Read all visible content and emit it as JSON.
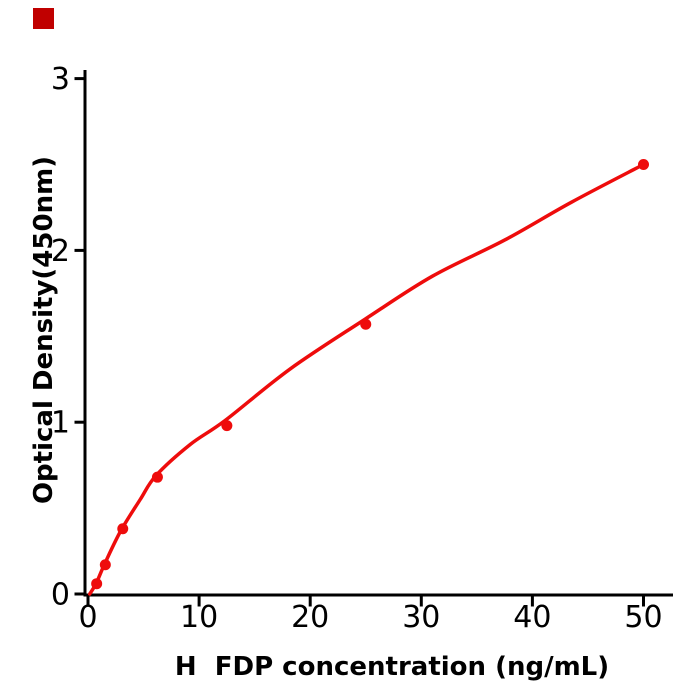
{
  "figure": {
    "background": "#ffffff",
    "brand_mark_color": "#c00000"
  },
  "chart_data": {
    "type": "scatter",
    "title": "",
    "xlabel": "H  FDP concentration (ng/mL)",
    "ylabel": "Optical Density(450nm)",
    "x_ticks": [
      "0",
      "10",
      "20",
      "30",
      "40",
      "50"
    ],
    "x_tick_values": [
      0,
      10,
      20,
      30,
      40,
      50
    ],
    "y_ticks": [
      "0",
      "1",
      "2",
      "3"
    ],
    "y_tick_values": [
      0,
      1,
      2,
      3
    ],
    "xlim": [
      -0.35,
      52.7
    ],
    "ylim": [
      -0.05,
      3.05
    ],
    "grid": false,
    "legend": "none",
    "axis_color": "#000000",
    "series": [
      {
        "name": "standard-points",
        "type": "scatter",
        "color": "#ee0c0c",
        "x": [
          0.78,
          1.56,
          3.13,
          6.25,
          12.5,
          25,
          50
        ],
        "y": [
          0.06,
          0.17,
          0.38,
          0.68,
          0.98,
          1.57,
          2.5
        ]
      }
    ],
    "fit_curve": {
      "name": "fitted-curve",
      "color": "#ee0c0c",
      "samples": [
        [
          0.15,
          0.0
        ],
        [
          0.72,
          0.06
        ],
        [
          1.53,
          0.18
        ],
        [
          2.97,
          0.37
        ],
        [
          4.7,
          0.55
        ],
        [
          6.13,
          0.69
        ],
        [
          9.2,
          0.87
        ],
        [
          12.34,
          1.01
        ],
        [
          18.2,
          1.31
        ],
        [
          24.95,
          1.6
        ],
        [
          31.0,
          1.85
        ],
        [
          37.5,
          2.06
        ],
        [
          43.5,
          2.28
        ],
        [
          50.0,
          2.5
        ]
      ]
    }
  }
}
